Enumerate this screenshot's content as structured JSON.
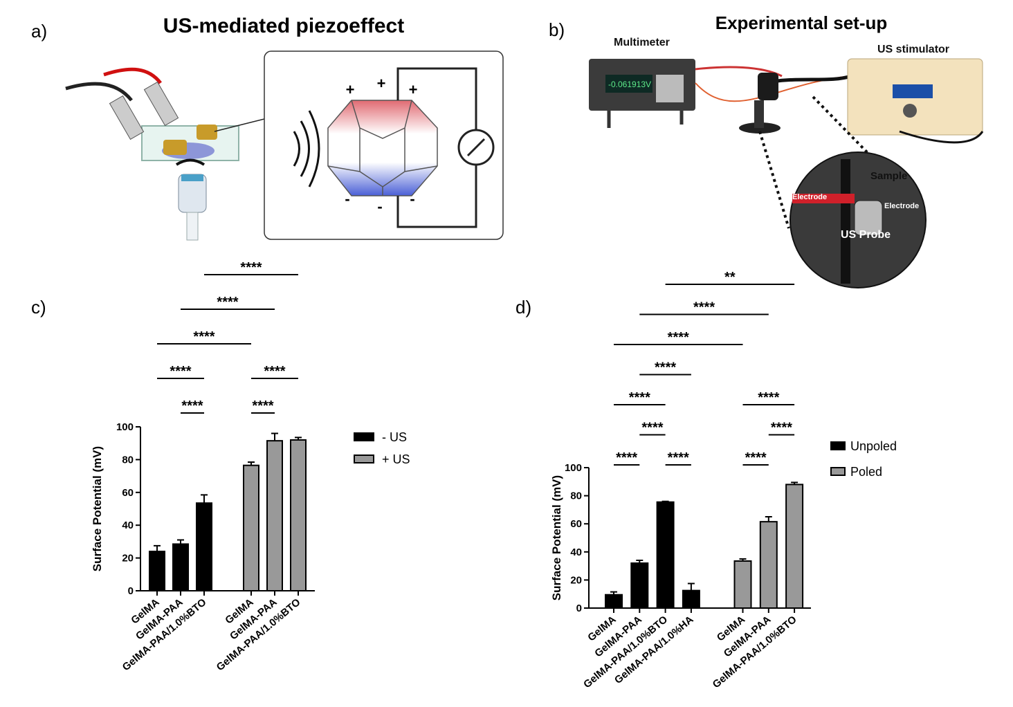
{
  "panel_a": {
    "label": "a)",
    "title": "US-mediated piezoeffect",
    "signs": [
      "+",
      "+",
      "+",
      "-",
      "-",
      "-"
    ]
  },
  "panel_b": {
    "label": "b)",
    "title": "Experimental set-up",
    "display": "-0.061913V",
    "labels": [
      "Multimeter",
      "US stimulator",
      "Sample",
      "Electrode",
      "Electrode",
      "US Probe"
    ]
  },
  "chart_data": [
    {
      "type": "bar",
      "label": "c)",
      "y_label": "Surface Potential (mV)",
      "ylim": [
        0,
        100
      ],
      "yticks": [
        0,
        20,
        40,
        60,
        80,
        100
      ],
      "series": [
        {
          "name": "- US",
          "color": "#000000",
          "categories": [
            "GelMA",
            "GelMA-PAA",
            "GelMA-PAA/1.0%BTO"
          ],
          "values": [
            24,
            28.5,
            53.5
          ],
          "errors": [
            3.5,
            2.5,
            5
          ]
        },
        {
          "name": "+ US",
          "color": "#999999",
          "categories": [
            "GelMA",
            "GelMA-PAA",
            "GelMA-PAA/1.0%BTO"
          ],
          "values": [
            76.5,
            91.5,
            92
          ],
          "errors": [
            2,
            4.5,
            1.5
          ]
        }
      ],
      "significance": [
        [
          {
            "from": 1,
            "to": 2,
            "label": "****"
          },
          {
            "from": 3,
            "to": 4,
            "label": "****"
          }
        ],
        [
          {
            "from": 0,
            "to": 2,
            "label": "****"
          },
          {
            "from": 3,
            "to": 5,
            "label": "****"
          }
        ],
        [
          {
            "from": 0,
            "to": 3,
            "label": "****"
          }
        ],
        [
          {
            "from": 1,
            "to": 4,
            "label": "****"
          }
        ],
        [
          {
            "from": 2,
            "to": 5,
            "label": "****"
          }
        ]
      ]
    },
    {
      "type": "bar",
      "label": "d)",
      "y_label": "Surface Potential (mV)",
      "ylim": [
        0,
        100
      ],
      "yticks": [
        0,
        20,
        40,
        60,
        80,
        100
      ],
      "series": [
        {
          "name": "Unpoled",
          "color": "#000000",
          "categories": [
            "GelMA",
            "GelMA-PAA",
            "GelMA-PAA/1.0%BTO",
            "GelMA-PAA/1.0%HA"
          ],
          "values": [
            9.5,
            32,
            75.5,
            12.5
          ],
          "errors": [
            2,
            2,
            0.5,
            5
          ]
        },
        {
          "name": "Poled",
          "color": "#999999",
          "categories": [
            "GelMA",
            "GelMA-PAA",
            "GelMA-PAA/1.0%BTO"
          ],
          "values": [
            33.5,
            61.5,
            88
          ],
          "errors": [
            1.5,
            3.5,
            1.5
          ]
        }
      ],
      "significance": [
        [
          {
            "from": 0,
            "to": 1,
            "label": "****"
          },
          {
            "from": 2,
            "to": 3,
            "label": "****"
          },
          {
            "from": 4,
            "to": 5,
            "label": "****"
          }
        ],
        [
          {
            "from": 1,
            "to": 2,
            "label": "****"
          },
          {
            "from": 5,
            "to": 6,
            "label": "****"
          }
        ],
        [
          {
            "from": 0,
            "to": 2,
            "label": "****"
          },
          {
            "from": 4,
            "to": 6,
            "label": "****"
          }
        ],
        [
          {
            "from": 1,
            "to": 3,
            "label": "****"
          }
        ],
        [
          {
            "from": 0,
            "to": 4,
            "label": "****"
          }
        ],
        [
          {
            "from": 1,
            "to": 5,
            "label": "****"
          }
        ],
        [
          {
            "from": 2,
            "to": 6,
            "label": "**"
          }
        ]
      ]
    }
  ]
}
